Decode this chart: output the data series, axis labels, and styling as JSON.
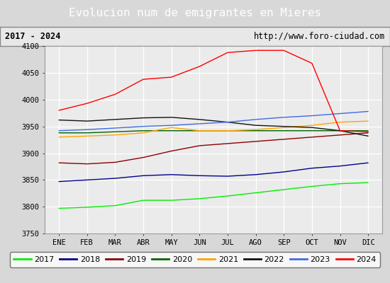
{
  "title": "Evolucion num de emigrantes en Mieres",
  "subtitle_left": "2017 - 2024",
  "subtitle_right": "http://www.foro-ciudad.com",
  "x_labels": [
    "ENE",
    "FEB",
    "MAR",
    "ABR",
    "MAY",
    "JUN",
    "JUL",
    "AGO",
    "SEP",
    "OCT",
    "NOV",
    "DIC"
  ],
  "ylim": [
    3750,
    4100
  ],
  "yticks": [
    3750,
    3800,
    3850,
    3900,
    3950,
    4000,
    4050,
    4100
  ],
  "series": [
    {
      "year": "2017",
      "color": "#00ee00",
      "data": [
        3797,
        3799,
        3802,
        3812,
        3812,
        3815,
        3820,
        3826,
        3832,
        3838,
        3843,
        3845
      ]
    },
    {
      "year": "2018",
      "color": "#00008b",
      "data": [
        3847,
        3850,
        3853,
        3858,
        3860,
        3858,
        3857,
        3860,
        3865,
        3872,
        3876,
        3882
      ]
    },
    {
      "year": "2019",
      "color": "#8b0000",
      "data": [
        3882,
        3880,
        3883,
        3892,
        3904,
        3914,
        3918,
        3922,
        3926,
        3930,
        3934,
        3938
      ]
    },
    {
      "year": "2020",
      "color": "#006400",
      "data": [
        3938,
        3938,
        3940,
        3942,
        3942,
        3942,
        3942,
        3942,
        3942,
        3942,
        3942,
        3942
      ]
    },
    {
      "year": "2021",
      "color": "#ffa500",
      "data": [
        3930,
        3932,
        3934,
        3938,
        3948,
        3942,
        3942,
        3944,
        3948,
        3952,
        3958,
        3960
      ]
    },
    {
      "year": "2022",
      "color": "#111111",
      "data": [
        3962,
        3960,
        3963,
        3966,
        3967,
        3963,
        3958,
        3952,
        3950,
        3948,
        3942,
        3932
      ]
    },
    {
      "year": "2023",
      "color": "#4169e1",
      "data": [
        3942,
        3944,
        3947,
        3950,
        3952,
        3955,
        3958,
        3963,
        3967,
        3970,
        3974,
        3978
      ]
    },
    {
      "year": "2024",
      "color": "#ff0000",
      "data": [
        3980,
        3993,
        4010,
        4038,
        4042,
        4062,
        4088,
        4092,
        4092,
        4068,
        3942,
        3940
      ]
    }
  ],
  "title_bg_color": "#5b8ec5",
  "title_text_color": "#ffffff",
  "subtitle_bg_color": "#e8e8e8",
  "plot_bg_color": "#ebebeb",
  "grid_color": "#ffffff",
  "legend_bg_color": "#ffffff",
  "legend_border_color": "#555555",
  "outer_bg_color": "#d8d8d8"
}
